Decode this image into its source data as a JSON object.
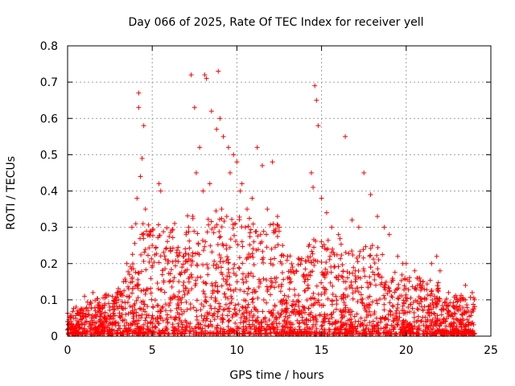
{
  "chart_data": {
    "type": "scatter",
    "title": "Day 066 of 2025, Rate Of TEC Index for receiver yell",
    "xlabel": "GPS time / hours",
    "ylabel": "ROTI / TECUs",
    "xlim": [
      0,
      25
    ],
    "ylim": [
      0,
      0.8
    ],
    "xticks": [
      "0",
      "5",
      "10",
      "15",
      "20",
      "25"
    ],
    "yticks": [
      "0",
      "0.1",
      "0.2",
      "0.3",
      "0.4",
      "0.5",
      "0.6",
      "0.7",
      "0.8"
    ],
    "xtick_values": [
      0,
      5,
      10,
      15,
      20,
      25
    ],
    "ytick_values": [
      0,
      0.1,
      0.2,
      0.3,
      0.4,
      0.5,
      0.6,
      0.7,
      0.8
    ],
    "grid": true,
    "marker": "plus",
    "color": "#ff0000",
    "series": [
      {
        "x": [
          4.2,
          4.2,
          4.5,
          4.4,
          4.3,
          4.1,
          4.6,
          4.8,
          5.0,
          5.4,
          5.5,
          5.8,
          3.8,
          3.5,
          3.3,
          3.1,
          3.0,
          2.5,
          2.0,
          1.5,
          1.0,
          0.5,
          0.2,
          0.0,
          7.3,
          7.5,
          7.8,
          8.1,
          8.2,
          8.5,
          8.8,
          8.9,
          9.0,
          9.2,
          9.5,
          9.6,
          9.8,
          10.0,
          10.3,
          10.6,
          10.9,
          11.2,
          11.5,
          11.8,
          12.1,
          12.4,
          12.7,
          13.0,
          13.5,
          14.0,
          14.4,
          14.5,
          14.6,
          14.7,
          14.8,
          15.0,
          15.3,
          15.6,
          16.0,
          16.4,
          16.8,
          17.2,
          17.5,
          17.9,
          18.3,
          18.7,
          19.0,
          19.5,
          20.0,
          20.5,
          21.0,
          21.5,
          21.8,
          22.0,
          22.5,
          23.0,
          23.5,
          23.9,
          6.0,
          6.5,
          7.0,
          10.5,
          11.0,
          12.0,
          13.2,
          14.2,
          15.5,
          17.0,
          18.0,
          19.8,
          20.8,
          22.8,
          23.3,
          7.6,
          8.0,
          8.4,
          8.7,
          9.1,
          9.4,
          9.9,
          10.2,
          10.8,
          11.4,
          12.5
        ],
        "y": [
          0.67,
          0.63,
          0.58,
          0.49,
          0.44,
          0.38,
          0.35,
          0.28,
          0.25,
          0.42,
          0.4,
          0.24,
          0.3,
          0.2,
          0.15,
          0.12,
          0.1,
          0.08,
          0.06,
          0.12,
          0.11,
          0.08,
          0.05,
          0.04,
          0.72,
          0.63,
          0.52,
          0.72,
          0.71,
          0.62,
          0.57,
          0.73,
          0.6,
          0.55,
          0.52,
          0.45,
          0.5,
          0.48,
          0.42,
          0.35,
          0.38,
          0.52,
          0.47,
          0.35,
          0.48,
          0.33,
          0.25,
          0.22,
          0.18,
          0.15,
          0.45,
          0.41,
          0.69,
          0.65,
          0.58,
          0.38,
          0.34,
          0.3,
          0.28,
          0.55,
          0.32,
          0.3,
          0.45,
          0.39,
          0.33,
          0.3,
          0.28,
          0.22,
          0.2,
          0.18,
          0.15,
          0.2,
          0.22,
          0.18,
          0.12,
          0.1,
          0.14,
          0.12,
          0.15,
          0.22,
          0.28,
          0.3,
          0.26,
          0.2,
          0.15,
          0.14,
          0.22,
          0.18,
          0.25,
          0.2,
          0.14,
          0.08,
          0.06,
          0.45,
          0.4,
          0.42,
          0.3,
          0.35,
          0.33,
          0.31,
          0.4,
          0.22,
          0.28,
          0.3
        ]
      }
    ]
  }
}
